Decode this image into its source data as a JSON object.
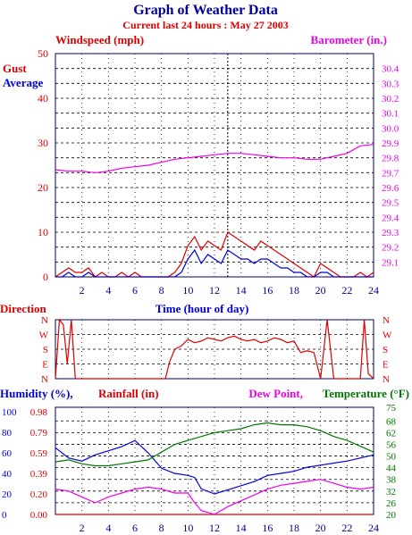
{
  "title": "Graph of Weather Data",
  "subtitle": "Current last 24 hours : May 27 2003",
  "colors": {
    "navy": "#000099",
    "red": "#dd0000",
    "blue": "#0000dd",
    "magenta": "#ee00ee",
    "green": "#007700",
    "frame": "#000066",
    "grid": "#000000"
  },
  "chart_data": [
    {
      "type": "line",
      "left_axis_label": "Windspeed (mph)",
      "right_axis_label": "Barometer (in.)",
      "side_labels": [
        "Gust",
        "Average"
      ],
      "xlabel": "Time (hour of day)",
      "xlim": [
        0,
        24
      ],
      "xticks": [
        2,
        4,
        6,
        8,
        10,
        12,
        14,
        16,
        18,
        20,
        22,
        24
      ],
      "ylim_left": [
        0,
        50
      ],
      "yticks_left": [
        0,
        10,
        20,
        30,
        40,
        50
      ],
      "ylim_right": [
        29.0,
        30.5
      ],
      "yticks_right": [
        29.1,
        29.2,
        29.3,
        29.4,
        29.5,
        29.6,
        29.7,
        29.8,
        29.9,
        30.0,
        30.1,
        30.2,
        30.3,
        30.4
      ],
      "current_time_marker": 13,
      "grid": true,
      "series": [
        {
          "name": "Gust",
          "axis": "left",
          "color": "red",
          "x": [
            0,
            0.5,
            1,
            1.5,
            2,
            2.5,
            3,
            3.5,
            4,
            4.5,
            5,
            5.5,
            6,
            6.5,
            7,
            7.5,
            8,
            8.5,
            9,
            9.5,
            10,
            10.5,
            11,
            11.5,
            12,
            12.5,
            13,
            13.5,
            14,
            14.5,
            15,
            15.5,
            16,
            16.5,
            17,
            17.5,
            18,
            18.5,
            19,
            19.5,
            20,
            20.5,
            21,
            21.5,
            22,
            22.5,
            23,
            23.5,
            24
          ],
          "values": [
            0,
            1,
            2,
            1,
            1,
            2,
            0,
            1,
            0,
            0,
            1,
            0,
            1,
            0,
            0,
            0,
            0,
            0,
            1,
            3,
            7,
            9,
            6,
            8,
            7,
            6,
            10,
            9,
            8,
            7,
            6,
            8,
            7,
            6,
            5,
            4,
            3,
            2,
            1,
            0,
            3,
            2,
            1,
            0,
            0,
            0,
            1,
            0,
            1
          ]
        },
        {
          "name": "Average",
          "axis": "left",
          "color": "blue",
          "x": [
            0,
            0.5,
            1,
            1.5,
            2,
            2.5,
            3,
            3.5,
            4,
            4.5,
            5,
            5.5,
            6,
            6.5,
            7,
            7.5,
            8,
            8.5,
            9,
            9.5,
            10,
            10.5,
            11,
            11.5,
            12,
            12.5,
            13,
            13.5,
            14,
            14.5,
            15,
            15.5,
            16,
            16.5,
            17,
            17.5,
            18,
            18.5,
            19,
            19.5,
            20,
            20.5,
            21,
            21.5,
            22,
            22.5,
            23,
            23.5,
            24
          ],
          "values": [
            0,
            0,
            1,
            0,
            0,
            1,
            0,
            0,
            0,
            0,
            0,
            0,
            0,
            0,
            0,
            0,
            0,
            0,
            0,
            1,
            4,
            6,
            3,
            5,
            4,
            3,
            6,
            5,
            4,
            4,
            3,
            4,
            4,
            3,
            2,
            2,
            1,
            1,
            0,
            0,
            1,
            1,
            0,
            0,
            0,
            0,
            0,
            0,
            0
          ]
        },
        {
          "name": "Barometer",
          "axis": "right",
          "color": "magenta",
          "x": [
            0,
            1,
            2,
            3,
            4,
            5,
            6,
            7,
            8,
            9,
            10,
            11,
            12,
            13,
            14,
            15,
            16,
            17,
            18,
            19,
            20,
            21,
            22,
            23,
            24
          ],
          "values": [
            29.72,
            29.71,
            29.71,
            29.7,
            29.71,
            29.73,
            29.74,
            29.75,
            29.77,
            29.79,
            29.8,
            29.81,
            29.82,
            29.83,
            29.83,
            29.82,
            29.81,
            29.8,
            29.8,
            29.79,
            29.79,
            29.81,
            29.83,
            29.88,
            29.89
          ]
        }
      ]
    },
    {
      "type": "line",
      "ylabel": "Direction",
      "xlabel": "Time (hour of day)",
      "xlim": [
        0,
        24
      ],
      "yticks": [
        "N",
        "E",
        "S",
        "W",
        "N"
      ],
      "ylim": [
        0,
        360
      ],
      "grid": true,
      "series": [
        {
          "name": "Direction",
          "color": "red",
          "x": [
            0,
            0.3,
            0.6,
            0.9,
            1.2,
            1.5,
            2,
            3,
            4,
            5,
            6,
            7,
            8,
            8.3,
            8.6,
            9,
            9.5,
            10,
            10.5,
            11,
            11.5,
            12,
            12.5,
            13,
            13.5,
            14,
            14.5,
            15,
            15.5,
            16,
            16.5,
            17,
            17.5,
            18,
            18.5,
            19,
            19.5,
            20,
            20.5,
            21,
            21.5,
            22,
            22.5,
            23,
            23.3,
            23.6,
            24
          ],
          "values": [
            0,
            360,
            330,
            90,
            360,
            0,
            0,
            0,
            0,
            0,
            0,
            0,
            0,
            0,
            100,
            180,
            200,
            240,
            220,
            230,
            250,
            240,
            230,
            250,
            260,
            240,
            230,
            240,
            220,
            230,
            250,
            240,
            220,
            230,
            160,
            170,
            160,
            0,
            360,
            0,
            0,
            0,
            0,
            0,
            360,
            30,
            0
          ]
        }
      ]
    },
    {
      "type": "line",
      "left_axis_labels": [
        "Humidity (%),",
        "Rainfall (in)"
      ],
      "right_axis_labels": [
        "Dew Point,",
        "Temperature (°F)"
      ],
      "xlim": [
        0,
        24
      ],
      "xticks": [
        2,
        4,
        6,
        8,
        10,
        12,
        14,
        16,
        18,
        20,
        22,
        24
      ],
      "humidity_ticks": [
        0,
        20,
        40,
        60,
        80,
        100
      ],
      "rainfall_ticks": [
        "0.00",
        "0.20",
        "0.39",
        "0.59",
        "0.79",
        "0.98"
      ],
      "ylim_right": [
        20,
        75
      ],
      "yticks_right": [
        20,
        26,
        32,
        38,
        44,
        50,
        56,
        62,
        68,
        75
      ],
      "grid": true,
      "series": [
        {
          "name": "Humidity",
          "axis": "humidity",
          "color": "blue",
          "x": [
            0,
            1,
            2,
            3,
            4,
            5,
            6,
            7,
            8,
            9,
            10,
            10.5,
            11,
            12,
            13,
            14,
            15,
            16,
            17,
            18,
            19,
            20,
            21,
            22,
            23,
            24
          ],
          "values": [
            65,
            55,
            52,
            58,
            62,
            66,
            72,
            60,
            45,
            40,
            38,
            36,
            25,
            20,
            24,
            28,
            32,
            38,
            40,
            42,
            46,
            48,
            50,
            52,
            55,
            58
          ]
        },
        {
          "name": "Rainfall",
          "axis": "rainfall",
          "color": "red",
          "x": [
            0,
            24
          ],
          "values": [
            0.0,
            0.0
          ]
        },
        {
          "name": "Dew Point",
          "axis": "right",
          "color": "magenta",
          "x": [
            0,
            1,
            2,
            3,
            4,
            5,
            6,
            7,
            8,
            9,
            10,
            10.5,
            11,
            12,
            13,
            14,
            15,
            16,
            17,
            18,
            19,
            20,
            21,
            22,
            23,
            24
          ],
          "values": [
            33,
            32,
            29,
            26,
            29,
            31,
            33,
            34,
            33,
            31,
            31,
            26,
            22,
            20,
            24,
            27,
            30,
            33,
            35,
            36,
            37,
            38,
            36,
            34,
            33,
            34
          ]
        },
        {
          "name": "Temperature",
          "axis": "right",
          "color": "green",
          "x": [
            0,
            1,
            2,
            3,
            4,
            5,
            6,
            7,
            8,
            9,
            10,
            11,
            12,
            13,
            14,
            15,
            16,
            17,
            18,
            19,
            20,
            21,
            22,
            23,
            24
          ],
          "values": [
            47,
            48,
            46,
            45,
            45,
            46,
            47,
            48,
            52,
            56,
            58,
            60,
            62,
            63,
            64,
            66,
            67,
            66,
            66,
            65,
            63,
            60,
            58,
            55,
            52
          ]
        }
      ]
    }
  ]
}
